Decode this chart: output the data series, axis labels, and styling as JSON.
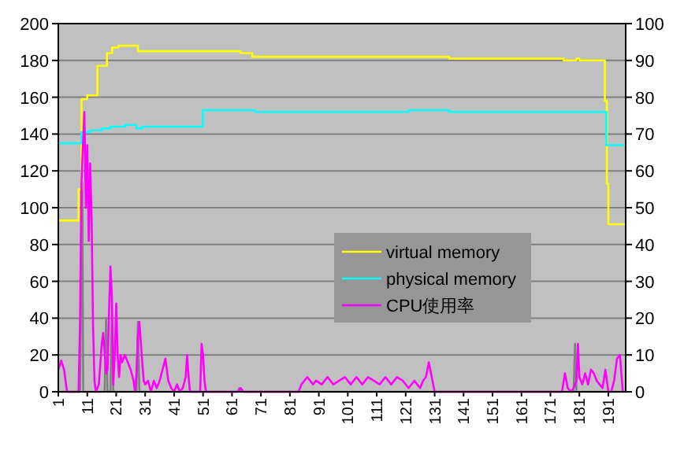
{
  "chart_data": {
    "type": "line",
    "xlim": [
      1,
      197
    ],
    "xticks": [
      1,
      11,
      21,
      31,
      41,
      51,
      61,
      71,
      81,
      91,
      101,
      111,
      121,
      131,
      141,
      151,
      161,
      171,
      181,
      191
    ],
    "ylim": [
      0,
      200
    ],
    "yticks": [
      0,
      20,
      40,
      60,
      80,
      100,
      120,
      140,
      160,
      180,
      200
    ],
    "y2lim": [
      0,
      100
    ],
    "y2ticks": [
      0,
      10,
      20,
      30,
      40,
      50,
      60,
      70,
      80,
      90,
      100
    ],
    "grid": "y",
    "legend": "bottom right",
    "marker": "none",
    "line_style": "solid",
    "series": [
      {
        "color": "#808080",
        "axis": "y2",
        "x": [
          1,
          8.5,
          9.3,
          9.6,
          17,
          17.5,
          18,
          19,
          19.5,
          20,
          28,
          28.5,
          29,
          63,
          63.5,
          64,
          179,
          179.5,
          180,
          197
        ],
        "values": [
          0,
          0,
          57,
          0,
          0,
          20,
          0,
          0,
          21,
          0,
          0,
          19,
          0,
          0,
          1,
          0,
          0,
          13,
          0,
          0
        ]
      },
      {
        "name": "virtual memory",
        "type": "step",
        "color": "#ffff00",
        "x": [
          1,
          8,
          9,
          11,
          14.5,
          17.8,
          19.6,
          21.8,
          28.5,
          64,
          68,
          136,
          175.6,
          180,
          181,
          189.8,
          190.5,
          191,
          197
        ],
        "values": [
          93,
          110,
          159,
          161,
          177,
          184,
          187,
          188,
          185,
          184,
          182,
          181,
          180,
          181,
          180,
          158,
          113,
          91,
          91
        ]
      },
      {
        "name": "physical memory",
        "type": "step",
        "color": "#00ffff",
        "x": [
          1,
          9,
          12,
          16,
          19,
          24,
          28,
          30,
          50.9,
          69,
          122,
          136,
          190.3,
          197
        ],
        "values": [
          135,
          141,
          142,
          143,
          144,
          145,
          143,
          144,
          153,
          152,
          153,
          152,
          134,
          134
        ]
      },
      {
        "name": "CPU使用率",
        "color": "#ff00ff",
        "axis": "y2",
        "x": [
          1,
          2,
          3,
          4,
          8,
          8.5,
          9,
          10,
          10.5,
          11,
          11.5,
          12,
          12.5,
          13,
          13.5,
          14,
          15,
          16,
          16.5,
          17,
          17.5,
          18,
          18.5,
          19,
          19.5,
          20,
          20.5,
          21,
          21.5,
          22,
          22.5,
          23,
          24,
          25,
          26,
          27,
          27.5,
          28,
          28.5,
          29,
          30,
          30.5,
          31,
          32,
          33,
          34,
          35,
          36,
          37,
          38,
          39,
          40,
          41,
          42,
          43,
          44,
          45,
          45.5,
          46,
          46.5,
          50,
          50.5,
          51,
          51.5,
          52,
          63,
          64,
          65,
          84,
          85,
          86,
          87,
          88,
          89,
          90,
          92,
          94,
          96,
          98,
          100,
          102,
          104,
          106,
          108,
          110,
          112,
          114,
          116,
          118,
          120,
          122,
          124,
          126,
          127,
          128,
          129,
          130,
          131,
          175,
          176,
          177,
          178,
          179,
          180,
          180.5,
          181,
          182,
          183,
          184,
          185,
          186,
          187,
          188,
          189,
          190,
          191,
          192,
          193,
          194,
          195,
          196
        ],
        "values": [
          6,
          8.5,
          6,
          0,
          0,
          19,
          57,
          76,
          50,
          67,
          41,
          62,
          47,
          18,
          3,
          0,
          2,
          13,
          16,
          11,
          5,
          6,
          21,
          34,
          26,
          2,
          10,
          24,
          10,
          4,
          10,
          8,
          10,
          8,
          6,
          3,
          0,
          5,
          15,
          19,
          8,
          3,
          2,
          3,
          0,
          3,
          1,
          3,
          6,
          9,
          3,
          1,
          0,
          2,
          0,
          1,
          4,
          10,
          4,
          0,
          0,
          13,
          10,
          3,
          0,
          0,
          1,
          0,
          0,
          2,
          3,
          4,
          3,
          2,
          3,
          2,
          4,
          2,
          3,
          4,
          2,
          4,
          2,
          4,
          3,
          2,
          4,
          2,
          4,
          3,
          1,
          3,
          1,
          3,
          4,
          8,
          4,
          0,
          0,
          5,
          1,
          0,
          1,
          3,
          13,
          4,
          2,
          5,
          2,
          6,
          5,
          3,
          2,
          1,
          6,
          0,
          0,
          3,
          9,
          10,
          0
        ]
      }
    ]
  }
}
